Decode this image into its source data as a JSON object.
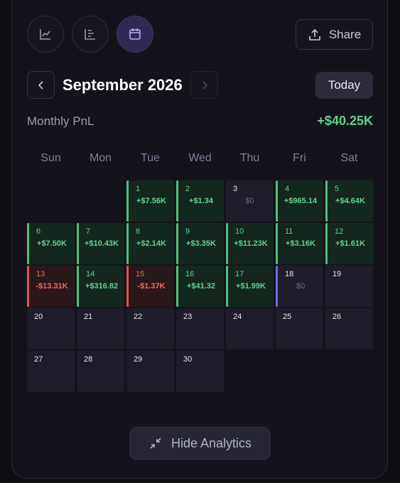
{
  "toolbar": {
    "share": "Share"
  },
  "nav": {
    "month": "September 2026",
    "today": "Today"
  },
  "summary": {
    "label": "Monthly PnL",
    "value": "+$40.25K"
  },
  "weekdays": [
    "Sun",
    "Mon",
    "Tue",
    "Wed",
    "Thu",
    "Fri",
    "Sat"
  ],
  "weeks": [
    [
      null,
      null,
      {
        "day": 1,
        "pnl": "+$7.56K",
        "status": "profit"
      },
      {
        "day": 2,
        "pnl": "+$1.34",
        "status": "profit"
      },
      {
        "day": 3,
        "pnl": "$0",
        "status": "zero"
      },
      {
        "day": 4,
        "pnl": "+$965.14",
        "status": "profit"
      },
      {
        "day": 5,
        "pnl": "+$4.64K",
        "status": "profit"
      }
    ],
    [
      {
        "day": 6,
        "pnl": "+$7.50K",
        "status": "profit"
      },
      {
        "day": 7,
        "pnl": "+$10.43K",
        "status": "profit"
      },
      {
        "day": 8,
        "pnl": "+$2.14K",
        "status": "profit"
      },
      {
        "day": 9,
        "pnl": "+$3.35K",
        "status": "profit"
      },
      {
        "day": 10,
        "pnl": "+$11.23K",
        "status": "profit"
      },
      {
        "day": 11,
        "pnl": "+$3.16K",
        "status": "profit"
      },
      {
        "day": 12,
        "pnl": "+$1.61K",
        "status": "profit"
      }
    ],
    [
      {
        "day": 13,
        "pnl": "-$13.31K",
        "status": "loss"
      },
      {
        "day": 14,
        "pnl": "+$316.82",
        "status": "profit"
      },
      {
        "day": 15,
        "pnl": "-$1.37K",
        "status": "loss"
      },
      {
        "day": 16,
        "pnl": "+$41.32",
        "status": "profit"
      },
      {
        "day": 17,
        "pnl": "+$1.99K",
        "status": "profit"
      },
      {
        "day": 18,
        "pnl": "$0",
        "status": "today"
      },
      {
        "day": 19
      }
    ],
    [
      {
        "day": 20
      },
      {
        "day": 21
      },
      {
        "day": 22
      },
      {
        "day": 23
      },
      {
        "day": 24
      },
      {
        "day": 25
      },
      {
        "day": 26
      }
    ],
    [
      {
        "day": 27
      },
      {
        "day": 28
      },
      {
        "day": 29
      },
      {
        "day": 30
      },
      null,
      null,
      null
    ]
  ],
  "footer": {
    "button": "Hide Analytics"
  }
}
